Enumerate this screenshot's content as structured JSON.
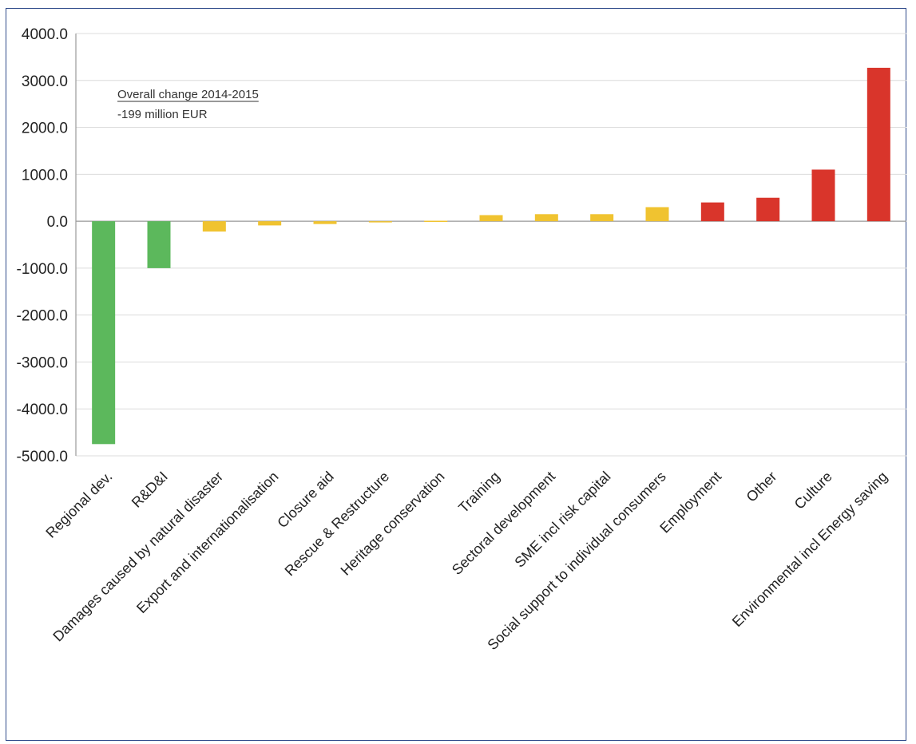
{
  "chart_data": {
    "type": "bar",
    "title": "",
    "xlabel": "",
    "ylabel": "",
    "ylim": [
      -5000,
      4000
    ],
    "yticks": [
      "4000.0",
      "3000.0",
      "2000.0",
      "1000.0",
      "0.0",
      "-1000.0",
      "-2000.0",
      "-3000.0",
      "-4000.0",
      "-5000.0"
    ],
    "ytick_values": [
      4000,
      3000,
      2000,
      1000,
      0,
      -1000,
      -2000,
      -3000,
      -4000,
      -5000
    ],
    "grid": true,
    "categories": [
      "Regional dev.",
      "R&D&I",
      "Damages caused by natural disaster",
      "Export and internationalisation",
      "Closure aid",
      "Rescue & Restructure",
      "Heritage conservation",
      "Training",
      "Sectoral development",
      "SME incl risk capital",
      "Social support to individual consumers",
      "Employment",
      "Other",
      "Culture",
      "Environmental incl Energy saving"
    ],
    "values": [
      -4750,
      -1000,
      -220,
      -90,
      -60,
      -20,
      10,
      130,
      150,
      150,
      300,
      400,
      500,
      1100,
      3270
    ],
    "colors": [
      "#5cb85c",
      "#5cb85c",
      "#f0c330",
      "#f0c330",
      "#f0c330",
      "#f0c330",
      "#f0c330",
      "#f0c330",
      "#f0c330",
      "#f0c330",
      "#f0c330",
      "#d9352b",
      "#d9352b",
      "#d9352b",
      "#d9352b"
    ],
    "annotation": {
      "title": "Overall change 2014-2015",
      "value": "-199 million EUR"
    }
  }
}
